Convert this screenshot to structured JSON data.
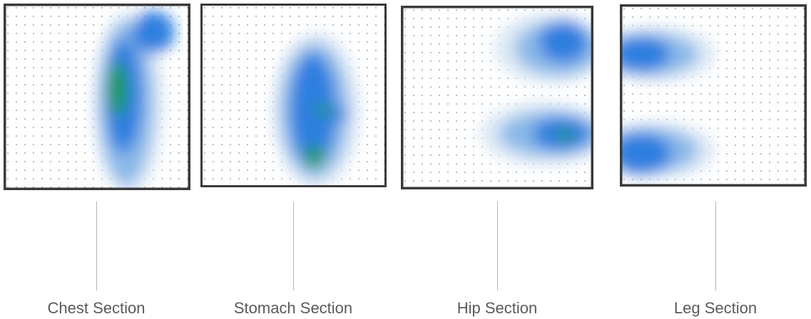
{
  "figure": {
    "sections": [
      {
        "id": "chest",
        "label": "Chest Section"
      },
      {
        "id": "stomach",
        "label": "Stomach Section"
      },
      {
        "id": "hip",
        "label": "Hip Section"
      },
      {
        "id": "leg",
        "label": "Leg Section"
      }
    ],
    "colors": {
      "frame": "#3a3a3a",
      "grid_dot": "#8a8a8a",
      "heat_low": "#dde9f5",
      "heat_mid": "#8ab8e8",
      "heat_high": "#2f7fe0",
      "heat_peak": "#1f9a55",
      "connector": "#b5b5b5",
      "label_text": "#5a5a5a"
    }
  }
}
